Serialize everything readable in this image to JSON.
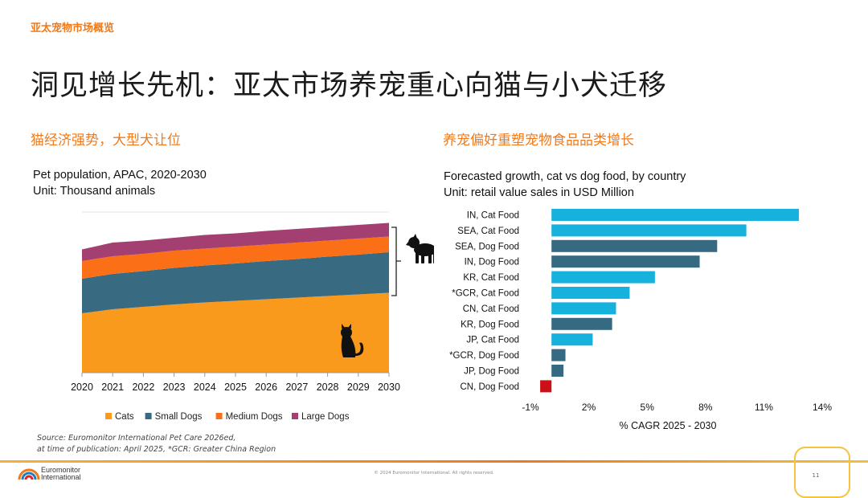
{
  "header": {
    "section_label": "亚太宠物市场概览",
    "title": "洞见增长先机：亚太市场养宠重心向猫与小犬迁移"
  },
  "left_panel": {
    "subtitle": "猫经济强势，大型犬让位",
    "chart_title_line1": "Pet population, APAC, 2020-2030",
    "chart_title_line2": "Unit: Thousand animals",
    "dog_icon": "dog-icon",
    "cat_icon": "cat-icon"
  },
  "right_panel": {
    "subtitle": "养宠偏好重塑宠物食品品类增长",
    "chart_title_line1": "Forecasted growth, cat vs dog food, by country",
    "chart_title_line2": "Unit: retail value sales in USD Million"
  },
  "source": {
    "line1": "Source: Euromonitor International Pet Care 2026ed,",
    "line2": "at time of publication: April 2025, *GCR: Greater China Region"
  },
  "footer": {
    "copyright": "© 2024 Euromonitor International. All rights reserved.",
    "page_number": "11",
    "logo_line1": "Euromonitor",
    "logo_line2": "International"
  },
  "colors": {
    "accent": "#f07a1a",
    "cats": "#f99a1c",
    "small_dogs": "#386a82",
    "medium_dogs": "#fb7017",
    "large_dogs": "#a43f72",
    "cat_food": "#16b1dd",
    "dog_food": "#366a82",
    "negative": "#cc1018"
  },
  "chart_data": [
    {
      "type": "area",
      "stacked": true,
      "title": "Pet population, APAC, 2020-2030",
      "subtitle": "Unit: Thousand animals",
      "x": [
        "2020",
        "2021",
        "2022",
        "2023",
        "2024",
        "2025",
        "2026",
        "2027",
        "2028",
        "2029",
        "2030"
      ],
      "ylim": [
        0,
        400
      ],
      "series": [
        {
          "name": "Cats",
          "color": "#f99a1c",
          "values": [
            148,
            158,
            164,
            170,
            175,
            179,
            183,
            187,
            191,
            195,
            199
          ]
        },
        {
          "name": "Small Dogs",
          "values": [
            86,
            88,
            89,
            91,
            92,
            93,
            95,
            96,
            98,
            99,
            101
          ],
          "color": "#386a82"
        },
        {
          "name": "Medium Dogs",
          "values": [
            44,
            44,
            43,
            43,
            42,
            42,
            41,
            41,
            40,
            40,
            39
          ],
          "color": "#fb7017"
        },
        {
          "name": "Large Dogs",
          "values": [
            29,
            34,
            33,
            32,
            34,
            33,
            34,
            34,
            34,
            34,
            34
          ],
          "color": "#a43f72"
        }
      ],
      "legend": "bottom",
      "grid": false
    },
    {
      "type": "bar",
      "orientation": "horizontal",
      "title": "Forecasted growth, cat vs dog food, by country",
      "subtitle": "Unit: retail value sales in USD Million",
      "xlabel": "% CAGR 2025 - 2030",
      "xlim": [
        -1,
        14
      ],
      "tick_labels": [
        "-1%",
        "2%",
        "5%",
        "8%",
        "11%",
        "14%"
      ],
      "ticks": [
        -1,
        2,
        5,
        8,
        11,
        14
      ],
      "categories": [
        "IN, Cat Food",
        "SEA, Cat Food",
        "SEA, Dog Food",
        "IN, Dog Food",
        "KR, Cat Food",
        "*GCR, Cat Food",
        "CN, Cat Food",
        "KR, Dog Food",
        "JP, Cat Food",
        "*GCR, Dog Food",
        "JP, Dog Food",
        "CN, Dog Food"
      ],
      "values": [
        12.8,
        10.1,
        8.6,
        7.7,
        5.4,
        4.1,
        3.4,
        3.2,
        2.2,
        0.8,
        0.7,
        -0.5
      ],
      "kinds": [
        "cat",
        "cat",
        "dog",
        "dog",
        "cat",
        "cat",
        "cat",
        "dog",
        "cat",
        "dog",
        "dog",
        "neg"
      ]
    }
  ]
}
